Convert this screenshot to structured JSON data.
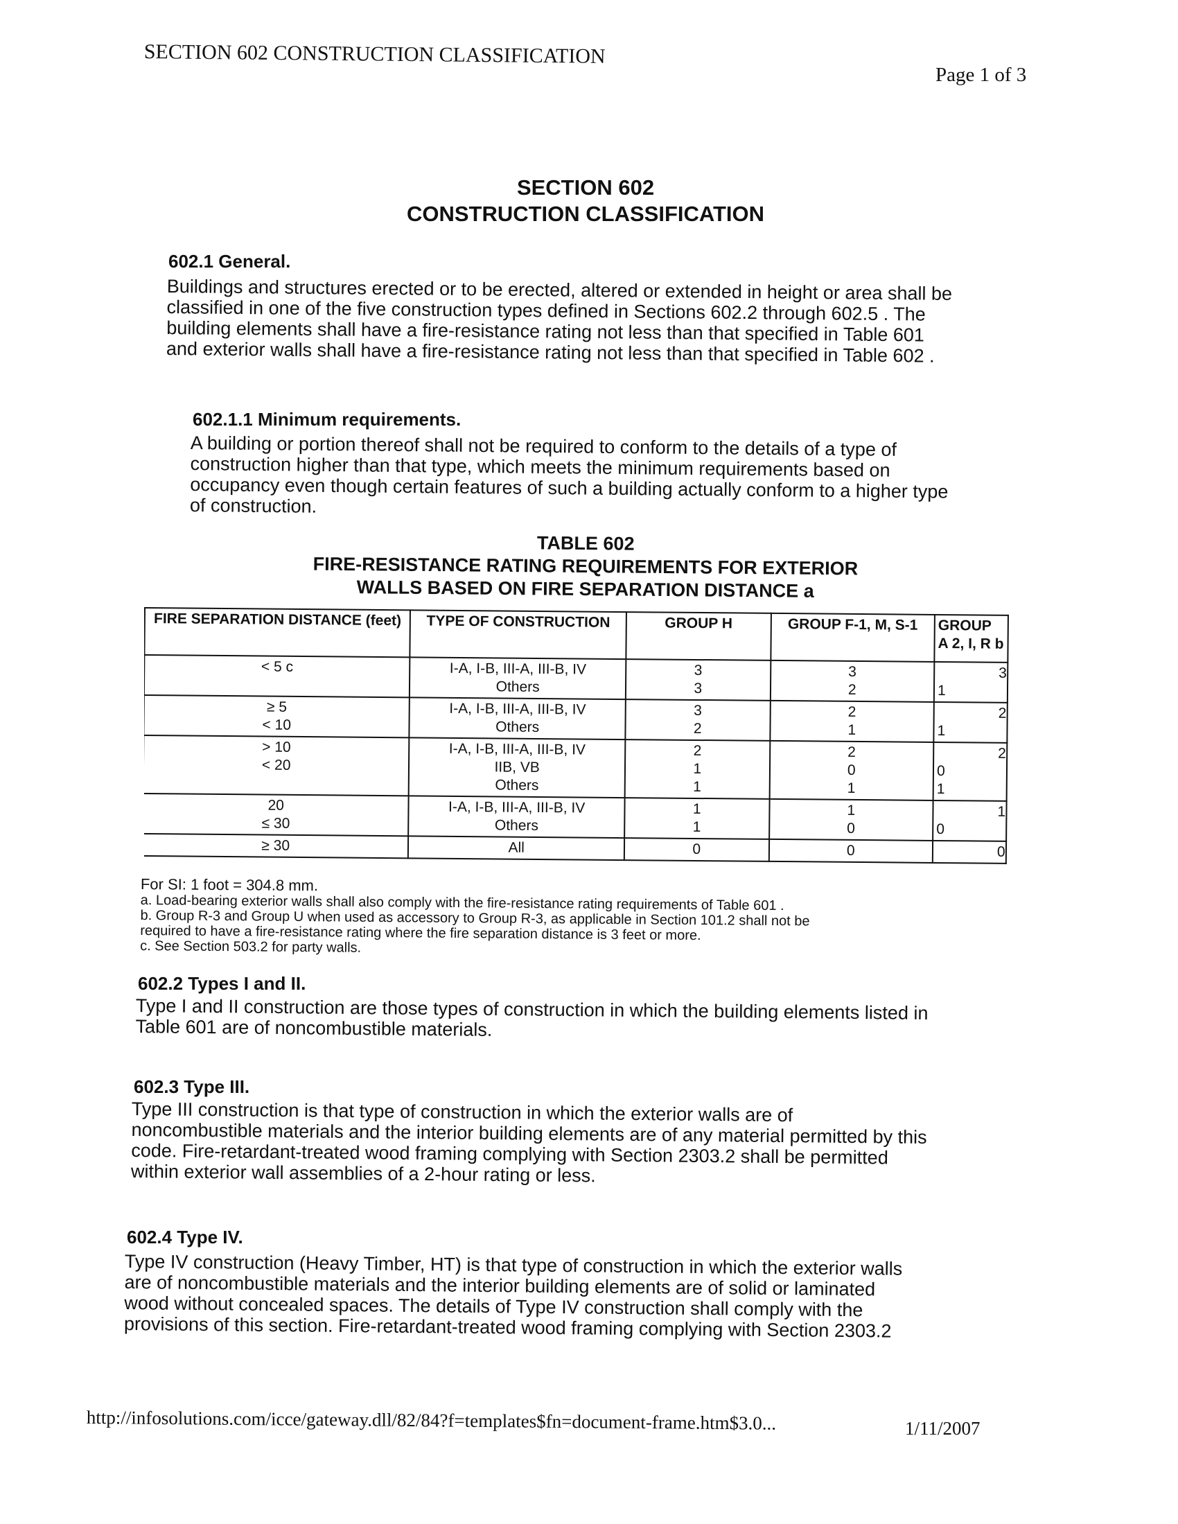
{
  "running_header": "SECTION 602 CONSTRUCTION CLASSIFICATION",
  "page_number": "Page 1 of 3",
  "title": {
    "line1": "SECTION 602",
    "line2": "CONSTRUCTION CLASSIFICATION"
  },
  "s6021": {
    "heading": "602.1 General.",
    "lines": [
      "Buildings and structures erected or to be erected, altered or extended in height or area shall be",
      "classified in one of the five construction types defined in Sections 602.2 through 602.5 . The",
      "building elements shall have a fire-resistance rating not less than that specified in Table 601",
      "and exterior walls shall have a fire-resistance rating not less than that specified in Table 602 ."
    ]
  },
  "s60211": {
    "heading": "602.1.1 Minimum requirements.",
    "lines": [
      "A building or portion thereof shall not be required to conform to the details of a type of",
      "construction higher than that type, which meets the minimum requirements based on",
      "occupancy even though certain features of such a building actually conform to a higher type",
      "of construction."
    ]
  },
  "table": {
    "title1": "TABLE 602",
    "title2": "FIRE-RESISTANCE RATING REQUIREMENTS FOR EXTERIOR",
    "title3": "WALLS BASED ON FIRE SEPARATION DISTANCE a",
    "headers": [
      "FIRE SEPARATION DISTANCE (feet)",
      "TYPE OF CONSTRUCTION",
      "GROUP H",
      "GROUP F-1, M, S-1",
      "GROUP A 2, I, R b"
    ],
    "rows": [
      {
        "distance": "< 5 c",
        "types": "I-A, I-B, III-A, III-B, IV\nOthers",
        "h": "3\n3",
        "f": "3\n2",
        "a": "3\n1"
      },
      {
        "distance": "≥ 5\n< 10",
        "types": "I-A, I-B, III-A, III-B, IV\nOthers",
        "h": "3\n2",
        "f": "2\n1",
        "a": "2\n1"
      },
      {
        "distance": "> 10\n< 20",
        "types": "I-A, I-B, III-A, III-B, IV\nIIB, VB\nOthers",
        "h": "2\n1\n1",
        "f": "2\n0\n1",
        "a": "2\n0\n1"
      },
      {
        "distance": "20\n≤ 30",
        "types": "I-A, I-B, III-A, III-B, IV\nOthers",
        "h": "1\n1",
        "f": "1\n0",
        "a": "1\n0"
      },
      {
        "distance": "≥ 30",
        "types": "All",
        "h": "0",
        "f": "0",
        "a": "0"
      }
    ]
  },
  "footnotes": [
    "For SI:    1 foot = 304.8 mm.",
    "a. Load-bearing exterior walls shall also comply with the fire-resistance rating requirements of Table 601 .",
    "b. Group R-3 and Group U when used as accessory to Group R-3, as applicable in Section 101.2 shall not be",
    "required to have a fire-resistance rating where the fire separation distance is 3 feet or more.",
    "c. See Section 503.2 for party walls."
  ],
  "s6022": {
    "heading": "602.2 Types I and II.",
    "lines": [
      "Type I and II construction are those types of construction in which the building elements listed in",
      "Table 601 are of noncombustible materials."
    ]
  },
  "s6023": {
    "heading": "602.3 Type III.",
    "lines": [
      "Type III construction is that type of construction in which the exterior walls are of",
      "noncombustible materials and the interior building elements are of any material permitted by this",
      "code. Fire-retardant-treated wood framing complying with Section 2303.2 shall be permitted",
      "within exterior wall assemblies of a 2-hour rating or less."
    ]
  },
  "s6024": {
    "heading": "602.4 Type IV.",
    "lines": [
      "Type IV construction (Heavy Timber, HT) is that type of construction in which the exterior walls",
      "are of noncombustible materials and the interior building elements are of solid or laminated",
      "wood without concealed spaces. The details of Type IV construction shall comply with the",
      "provisions of this section. Fire-retardant-treated wood framing complying with Section 2303.2"
    ]
  },
  "footer": {
    "url": "http://infosolutions.com/icce/gateway.dll/82/84?f=templates$fn=document-frame.htm$3.0...",
    "date": "1/11/2007"
  }
}
